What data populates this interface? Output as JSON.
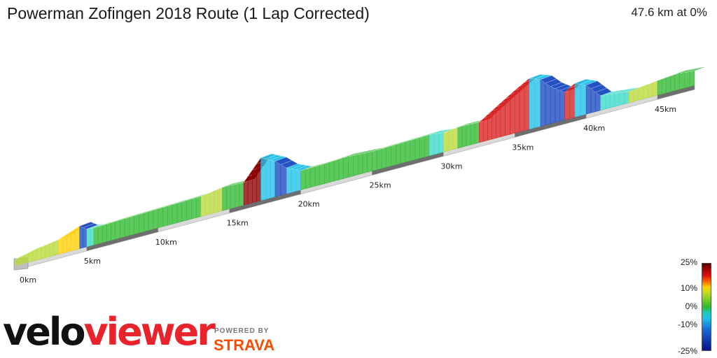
{
  "header": {
    "title": "Powerman Zofingen 2018 Route (1 Lap Corrected)",
    "stat": "47.6 km at 0%"
  },
  "legend": {
    "labels": [
      "25%",
      "10%",
      "0%",
      "-10%",
      "-25%"
    ],
    "colors": {
      "steep_up": "#8b0000",
      "up": "#ffd000",
      "flat": "#2fb82f",
      "down": "#20c8e0",
      "steep_down": "#0a108c"
    }
  },
  "branding": {
    "velo": "velo",
    "viewer": "viewer",
    "powered_by": "POWERED BY",
    "strava": "STRAVA"
  },
  "chart_data": {
    "type": "area",
    "title": "Powerman Zofingen 2018 Route (1 Lap Corrected)",
    "x_unit": "km",
    "xlim": [
      0,
      47.6
    ],
    "distance_ticks": [
      "0km",
      "5km",
      "10km",
      "15km",
      "20km",
      "25km",
      "30km",
      "35km",
      "40km",
      "45km"
    ],
    "distance_tick_values": [
      0,
      5,
      10,
      15,
      20,
      25,
      30,
      35,
      40,
      45
    ],
    "elevation_profile": {
      "distance": [
        0,
        1.5,
        3,
        4.5,
        5,
        5.5,
        7,
        9,
        11,
        13,
        14.5,
        16,
        17.2,
        18.2,
        19,
        20,
        21,
        22,
        23,
        24,
        25,
        27,
        29,
        30,
        31,
        32.5,
        34,
        35,
        36,
        36.8,
        37.5,
        38.5,
        39.2,
        40,
        41,
        42,
        43,
        44,
        45,
        46.2,
        47.6
      ],
      "relative_height": [
        0,
        6,
        10,
        20,
        14,
        13,
        14,
        15,
        16,
        17,
        21,
        20,
        45,
        36,
        24,
        16,
        16,
        17,
        18,
        17,
        16,
        17,
        18,
        16,
        18,
        17,
        34,
        45,
        55,
        50,
        38,
        26,
        34,
        28,
        10,
        8,
        6,
        8,
        10,
        12,
        10
      ]
    },
    "gradient_scale_percent": [
      25,
      10,
      0,
      -10,
      -25
    ]
  }
}
